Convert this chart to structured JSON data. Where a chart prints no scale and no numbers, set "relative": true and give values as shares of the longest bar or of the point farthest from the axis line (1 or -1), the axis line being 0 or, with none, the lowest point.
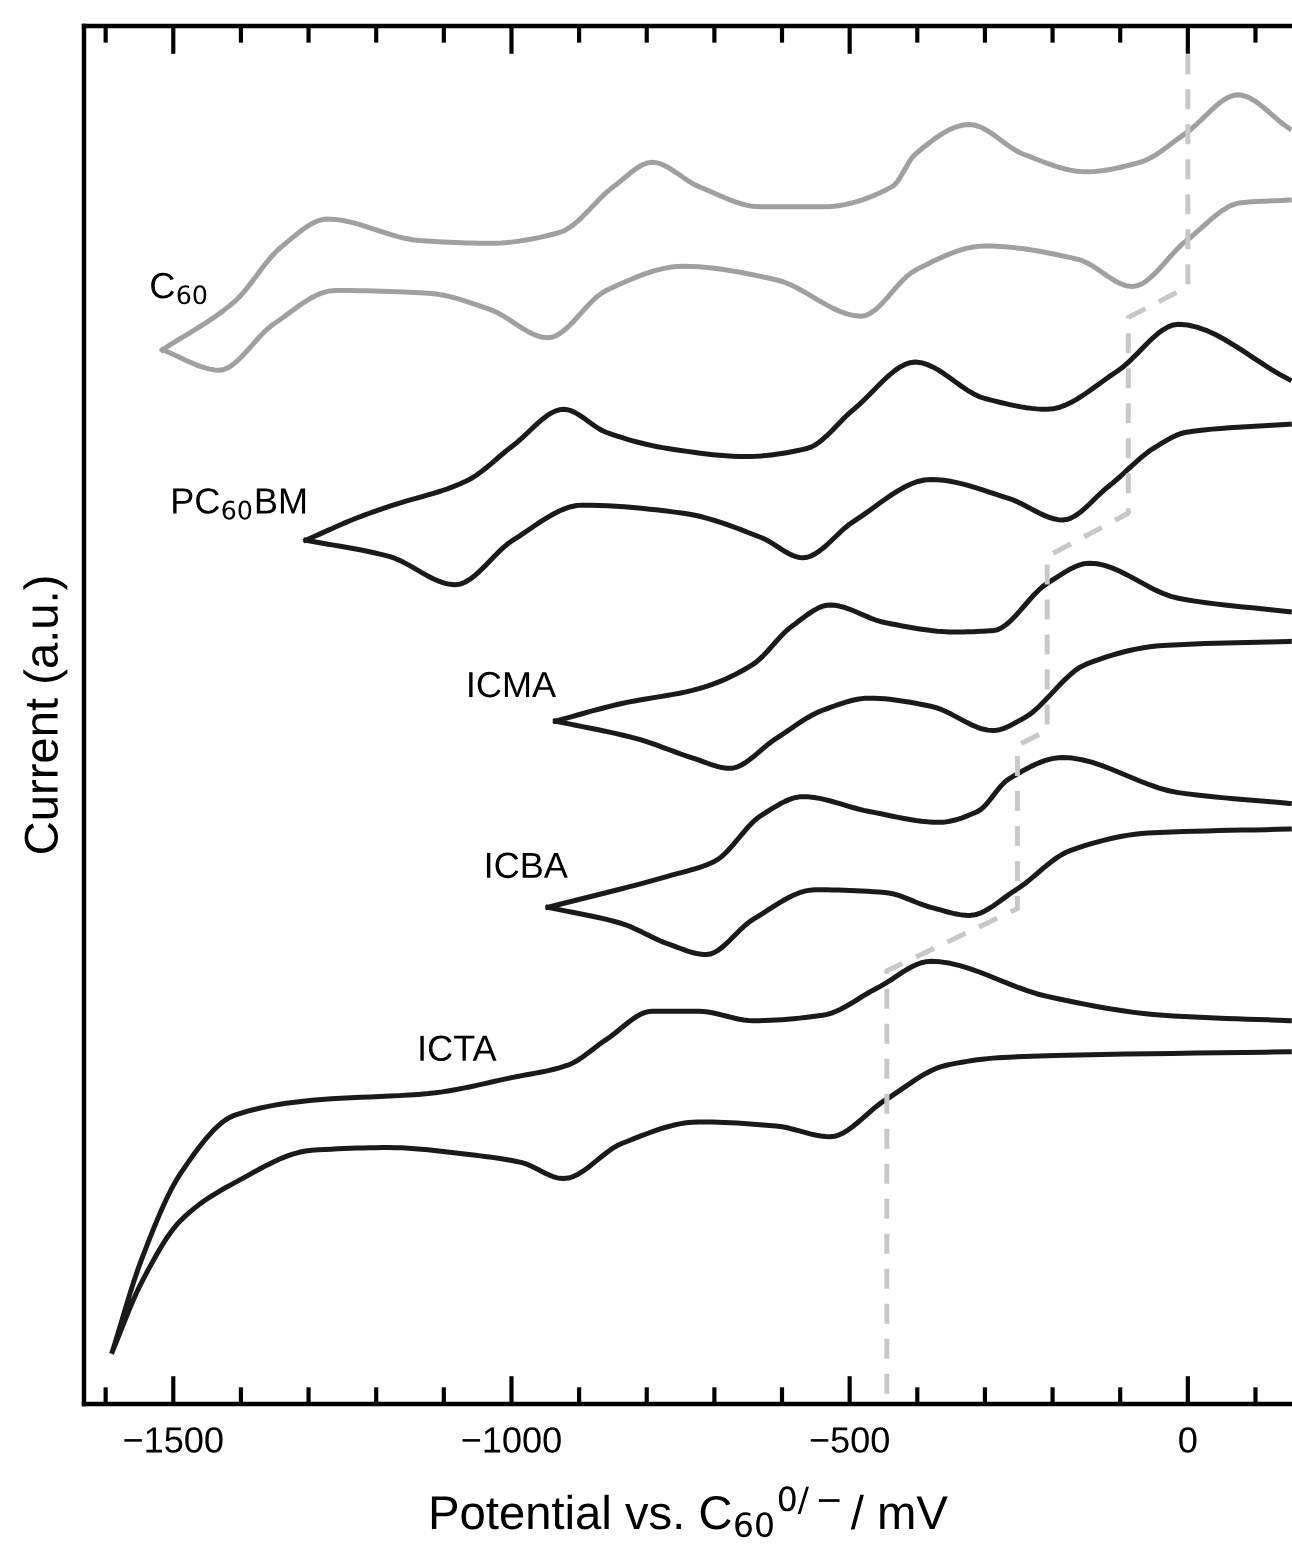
{
  "chart_data": {
    "type": "line",
    "relative": true,
    "tick_labels": "x",
    "xlabel": "Potential vs. C$_{60}$$^{0/−}$/ mV",
    "ylabel": "Current (a.u.)",
    "xlim": [
      -1632,
      154
    ],
    "xticks": [
      {
        "value": -1600,
        "label": null
      },
      {
        "value": -1500,
        "label": "−1500"
      },
      {
        "value": -1400,
        "label": null
      },
      {
        "value": -1300,
        "label": null
      },
      {
        "value": -1200,
        "label": null
      },
      {
        "value": -1100,
        "label": null
      },
      {
        "value": -1000,
        "label": "−1000"
      },
      {
        "value": -900,
        "label": null
      },
      {
        "value": -800,
        "label": null
      },
      {
        "value": -700,
        "label": null
      },
      {
        "value": -600,
        "label": null
      },
      {
        "value": -500,
        "label": "−500"
      },
      {
        "value": -400,
        "label": null
      },
      {
        "value": -300,
        "label": null
      },
      {
        "value": -200,
        "label": null
      },
      {
        "value": -100,
        "label": null
      },
      0,
      {
        "value": 100,
        "label": null
      }
    ],
    "series": [
      {
        "name": "C$_{60}$",
        "color": "#a0a0a0",
        "x": [
          -1516,
          -1432,
          -1352,
          -1261,
          -1123,
          -1032,
          -946,
          -860,
          -746,
          -609,
          -483,
          -403,
          -300,
          -162,
          -82,
          -2,
          78,
          150,
          null,
          150,
          74,
          -2,
          -71,
          -151,
          -243,
          -323,
          -403,
          -437,
          -540,
          -631,
          -723,
          -792,
          -849,
          -929,
          -1032,
          -1135,
          -1272,
          -1341,
          -1409,
          -1516
        ],
        "values": [
          0.781,
          0.766,
          0.8,
          0.825,
          0.823,
          0.811,
          0.79,
          0.825,
          0.843,
          0.833,
          0.806,
          0.84,
          0.858,
          0.848,
          0.828,
          0.862,
          0.89,
          0.892,
          null,
          0.945,
          0.97,
          0.942,
          0.92,
          0.913,
          0.926,
          0.948,
          0.926,
          0.902,
          0.887,
          0.887,
          0.902,
          0.92,
          0.902,
          0.868,
          0.86,
          0.862,
          0.878,
          0.857,
          0.817,
          0.781
        ]
      },
      {
        "name": "PC$_{60}$BM",
        "color": "#1a1a1a",
        "x": [
          -1304,
          -1181,
          -1083,
          -998,
          -895,
          -746,
          -631,
          -569,
          -494,
          -380,
          -265,
          -185,
          -117,
          -48,
          -2,
          150,
          null,
          150,
          -14,
          -105,
          -208,
          -300,
          -403,
          -494,
          -563,
          -654,
          -769,
          -860,
          -923,
          -998,
          -1066,
          -1181,
          -1226,
          -1304
        ],
        "values": [
          0.64,
          0.628,
          0.607,
          0.64,
          0.666,
          0.66,
          0.642,
          0.627,
          0.654,
          0.685,
          0.671,
          0.655,
          0.68,
          0.709,
          0.72,
          0.726,
          null,
          0.759,
          0.8,
          0.765,
          0.737,
          0.745,
          0.772,
          0.737,
          0.708,
          0.702,
          0.708,
          0.72,
          0.737,
          0.71,
          0.684,
          0.665,
          0.657,
          0.64
        ]
      },
      {
        "name": "ICMA",
        "color": "#1a1a1a",
        "x": [
          -935,
          -815,
          -734,
          -677,
          -609,
          -540,
          -471,
          -380,
          -288,
          -243,
          -151,
          -37,
          150,
          null,
          150,
          -14,
          -145,
          -208,
          -288,
          -345,
          -448,
          -529,
          -586,
          -643,
          -723,
          -837,
          -935
        ],
        "values": [
          0.506,
          0.493,
          0.479,
          0.471,
          0.493,
          0.514,
          0.523,
          0.517,
          0.499,
          0.508,
          0.548,
          0.562,
          0.565,
          null,
          0.587,
          0.597,
          0.623,
          0.608,
          0.573,
          0.572,
          0.579,
          0.592,
          0.576,
          0.548,
          0.53,
          0.519,
          0.506
        ]
      },
      {
        "name": "ICBA",
        "color": "#1a1a1a",
        "x": [
          -946,
          -837,
          -769,
          -712,
          -643,
          -551,
          -448,
          -380,
          -323,
          -254,
          -174,
          -59,
          150,
          null,
          150,
          -14,
          -185,
          -265,
          -311,
          -368,
          -471,
          -569,
          -631,
          -700,
          -769,
          -946
        ],
        "values": [
          0.368,
          0.356,
          0.341,
          0.333,
          0.359,
          0.381,
          0.379,
          0.368,
          0.362,
          0.381,
          0.41,
          0.423,
          0.426,
          null,
          0.445,
          0.453,
          0.479,
          0.463,
          0.439,
          0.431,
          0.439,
          0.45,
          0.436,
          0.402,
          0.391,
          0.368
        ]
      },
      {
        "name": "ICTA",
        "color": "#1a1a1a",
        "x": [
          -1590,
          -1547,
          -1489,
          -1409,
          -1295,
          -1181,
          -1066,
          -986,
          -923,
          -837,
          -723,
          -609,
          -529,
          -448,
          -357,
          -265,
          150,
          null,
          150,
          -37,
          -208,
          -380,
          -460,
          -540,
          -643,
          -723,
          -792,
          -860,
          -917,
          -998,
          -1123,
          -1295,
          -1409,
          -1489,
          -1547,
          -1590
        ],
        "values": [
          0.039,
          0.09,
          0.136,
          0.164,
          0.188,
          0.19,
          0.185,
          0.179,
          0.167,
          0.193,
          0.209,
          0.206,
          0.198,
          0.225,
          0.251,
          0.257,
          0.261,
          null,
          0.284,
          0.288,
          0.302,
          0.328,
          0.308,
          0.288,
          0.284,
          0.291,
          0.291,
          0.27,
          0.251,
          0.242,
          0.23,
          0.225,
          0.214,
          0.171,
          0.107,
          0.039
        ]
      },
      {
        "color": "#c8c8c8",
        "line_style": "dashed",
        "x": [
          0,
          0,
          -88,
          -88,
          -208,
          -208,
          -252,
          -252,
          -445,
          -445
        ],
        "values": [
          1.0,
          0.828,
          0.805,
          0.66,
          0.628,
          0.499,
          0.488,
          0.367,
          0.321,
          0
        ]
      }
    ]
  }
}
